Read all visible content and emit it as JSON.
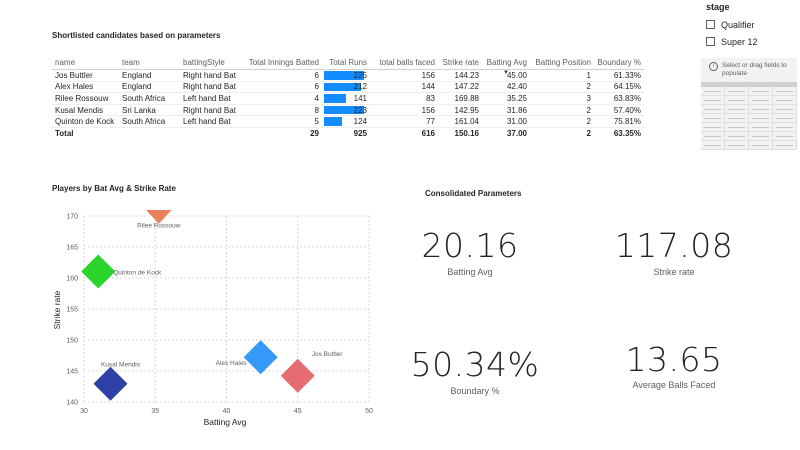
{
  "table": {
    "title": "Shortlisted candidates based on parameters",
    "columns": [
      "name",
      "team",
      "battingStyle",
      "Total Innings Batted",
      "Total Runs",
      "total balls faced",
      "Strike rate",
      "Batting Avg",
      "Batting Position",
      "Boundary %"
    ],
    "rows": [
      {
        "name": "Jos Buttler",
        "team": "England",
        "style": "Right hand Bat",
        "innings": "6",
        "runs": "225",
        "runs_value": 225,
        "balls": "156",
        "sr": "144.23",
        "avg": "45.00",
        "pos": "1",
        "boundary": "61.33%"
      },
      {
        "name": "Alex Hales",
        "team": "England",
        "style": "Right hand Bat",
        "innings": "6",
        "runs": "212",
        "runs_value": 212,
        "balls": "144",
        "sr": "147.22",
        "avg": "42.40",
        "pos": "2",
        "boundary": "64.15%"
      },
      {
        "name": "Rilee Rossouw",
        "team": "South Africa",
        "style": "Left hand Bat",
        "innings": "4",
        "runs": "141",
        "runs_value": 141,
        "balls": "83",
        "sr": "169.88",
        "avg": "35.25",
        "pos": "3",
        "boundary": "63.83%"
      },
      {
        "name": "Kusal Mendis",
        "team": "Sri Lanka",
        "style": "Right hand Bat",
        "innings": "8",
        "runs": "223",
        "runs_value": 223,
        "balls": "156",
        "sr": "142.95",
        "avg": "31.86",
        "pos": "2",
        "boundary": "57.40%"
      },
      {
        "name": "Quinton de Kock",
        "team": "South Africa",
        "style": "Left hand Bat",
        "innings": "5",
        "runs": "124",
        "runs_value": 124,
        "balls": "77",
        "sr": "161.04",
        "avg": "31.00",
        "pos": "2",
        "boundary": "75.81%"
      }
    ],
    "total": {
      "label": "Total",
      "innings": "29",
      "runs": "925",
      "balls": "616",
      "sr": "150.16",
      "avg": "37.00",
      "pos": "2",
      "boundary": "63.35%"
    },
    "runs_bar_max": 225,
    "sorted_column": "Batting Avg",
    "bar_color": "#118dff"
  },
  "slicer": {
    "title": "stage",
    "options": [
      {
        "label": "Qualifier",
        "checked": false
      },
      {
        "label": "Super 12",
        "checked": false
      }
    ],
    "placeholder_hint": "Select or drag fields to populate"
  },
  "chart_data": {
    "type": "scatter",
    "title": "Players by Bat Avg & Strike Rate",
    "xlabel": "Batting Avg",
    "ylabel": "Strike rate",
    "xlim": [
      30,
      50
    ],
    "ylim": [
      140,
      170
    ],
    "x_ticks": [
      "30",
      "35",
      "40",
      "45",
      "50"
    ],
    "y_ticks": [
      "140",
      "145",
      "150",
      "155",
      "160",
      "165",
      "170"
    ],
    "grid": true,
    "points": [
      {
        "label": "Jos Buttler",
        "x": 45.0,
        "y": 144.23,
        "color": "#e66c74",
        "marker": "diamond"
      },
      {
        "label": "Alex Hales",
        "x": 42.4,
        "y": 147.22,
        "color": "#3599f8",
        "marker": "diamond"
      },
      {
        "label": "Rilee Rossouw",
        "x": 35.25,
        "y": 169.88,
        "color": "#e8805a",
        "marker": "triangle-down"
      },
      {
        "label": "Kusal Mendis",
        "x": 31.86,
        "y": 142.95,
        "color": "#2f3fa8",
        "marker": "diamond"
      },
      {
        "label": "Quinton de Kock",
        "x": 31.0,
        "y": 161.04,
        "color": "#2ad42a",
        "marker": "diamond"
      }
    ]
  },
  "consolidated": {
    "title": "Consolidated Parameters",
    "cards": [
      {
        "value": "20.16",
        "label": "Batting Avg"
      },
      {
        "value": "117.08",
        "label": "Strike rate"
      },
      {
        "value": "50.34%",
        "label": "Boundary %"
      },
      {
        "value": "13.65",
        "label": "Average Balls Faced"
      }
    ]
  }
}
